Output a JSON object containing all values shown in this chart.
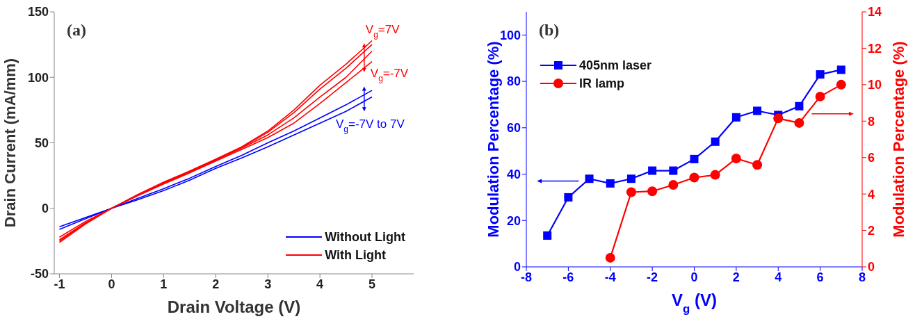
{
  "chart_data": [
    {
      "type": "line",
      "xlabel": "Drain Voltage (V)",
      "ylabel": "Drain Current (mA/mm)",
      "xlim": [
        -1.1,
        5.8
      ],
      "xticks": [
        -1,
        0,
        1,
        2,
        3,
        4,
        5
      ],
      "ylim": [
        -50,
        150
      ],
      "yticks": [
        -50,
        0,
        50,
        100,
        150
      ],
      "legend": "bottom right",
      "marker": "none",
      "annotations": [
        "(a)",
        {
          "text": "V$_{g}$=7V",
          "x": 4.85,
          "y": 126
        },
        {
          "text": "V$_{g}$=-7V",
          "x": 4.85,
          "y": 104
        },
        "V$_{g}$=-7V to 7V"
      ],
      "series": [
        {
          "name": "Without Light",
          "color": "#0000ff",
          "x": [
            -1,
            -0.5,
            0,
            0.5,
            1,
            1.5,
            2,
            2.5,
            3,
            3.5,
            4,
            4.5,
            5
          ],
          "values": [
            -14,
            -7,
            0,
            7.5,
            15,
            23,
            32,
            40.5,
            50,
            59,
            69,
            79,
            90
          ]
        },
        {
          "color": "#0000ff",
          "x": [
            -1,
            -0.5,
            0,
            0.5,
            1,
            1.5,
            2,
            2.5,
            3,
            3.5,
            4,
            4.5,
            5
          ],
          "values": [
            -16,
            -8,
            0,
            6.5,
            13.5,
            21.5,
            30.5,
            38.5,
            47,
            56,
            65,
            74,
            85
          ]
        },
        {
          "name": "With Light",
          "color": "#ff0000",
          "x": [
            -1,
            -0.5,
            0,
            0.5,
            1,
            1.5,
            2,
            2.5,
            3,
            3.5,
            4,
            4.5,
            5
          ],
          "values": [
            -26,
            -12,
            0,
            10.5,
            20,
            28.5,
            37.5,
            47,
            59,
            75,
            94,
            110,
            128
          ]
        },
        {
          "color": "#ff0000",
          "x": [
            -1,
            -0.5,
            0,
            0.5,
            1,
            1.5,
            2,
            2.5,
            3,
            3.5,
            4,
            4.5,
            5
          ],
          "values": [
            -25,
            -11.5,
            0,
            10,
            19.5,
            28,
            37,
            46.5,
            58,
            73,
            91,
            107,
            125
          ]
        },
        {
          "color": "#ff0000",
          "x": [
            -1,
            -0.5,
            0,
            0.5,
            1,
            1.5,
            2,
            2.5,
            3,
            3.5,
            4,
            4.5,
            5
          ],
          "values": [
            -24,
            -11,
            0,
            10,
            19,
            27.5,
            36.5,
            46,
            56,
            69,
            85,
            100,
            120
          ]
        },
        {
          "color": "#ff0000",
          "x": [
            -1,
            -0.5,
            0,
            0.5,
            1,
            1.5,
            2,
            2.5,
            3,
            3.5,
            4,
            4.5,
            5
          ],
          "values": [
            -22,
            -10,
            0,
            9.5,
            18.5,
            27,
            36,
            45,
            54,
            65,
            80,
            96,
            112
          ]
        }
      ]
    },
    {
      "type": "line",
      "xlabel": "V$_{g}$ (V)",
      "ylabel": "Modulation Percentage (%)",
      "y2label": "Modulation Percentage (%)",
      "xlim": [
        -8,
        8
      ],
      "xticks": [
        -8,
        -6,
        -4,
        -2,
        0,
        2,
        4,
        6,
        8
      ],
      "ylim": [
        0,
        110
      ],
      "yticks": [
        0,
        20,
        40,
        60,
        80,
        100
      ],
      "y2lim": [
        0,
        14
      ],
      "y2ticks": [
        0,
        2,
        4,
        6,
        8,
        10,
        12,
        14
      ],
      "legend": "top left",
      "annotations": [
        "(b)"
      ],
      "x": [
        -7,
        -6,
        -5,
        -4,
        -3,
        -2,
        -1,
        0,
        1,
        2,
        3,
        4,
        5,
        6,
        7
      ],
      "series": [
        {
          "name": "405nm laser",
          "color": "#0000ff",
          "marker": "square",
          "values": [
            13.5,
            30,
            38,
            36,
            38,
            41.5,
            41.5,
            46.5,
            54,
            64.5,
            67.3,
            65.5,
            69.3,
            83,
            85
          ]
        },
        {
          "name": "IR lamp",
          "color": "#ff0000",
          "marker": "circle",
          "axis": "y2",
          "values": [
            null,
            null,
            null,
            0.5,
            4.1,
            4.15,
            4.5,
            4.9,
            5.05,
            5.95,
            5.6,
            8.15,
            7.9,
            9.35,
            10
          ]
        }
      ]
    }
  ]
}
